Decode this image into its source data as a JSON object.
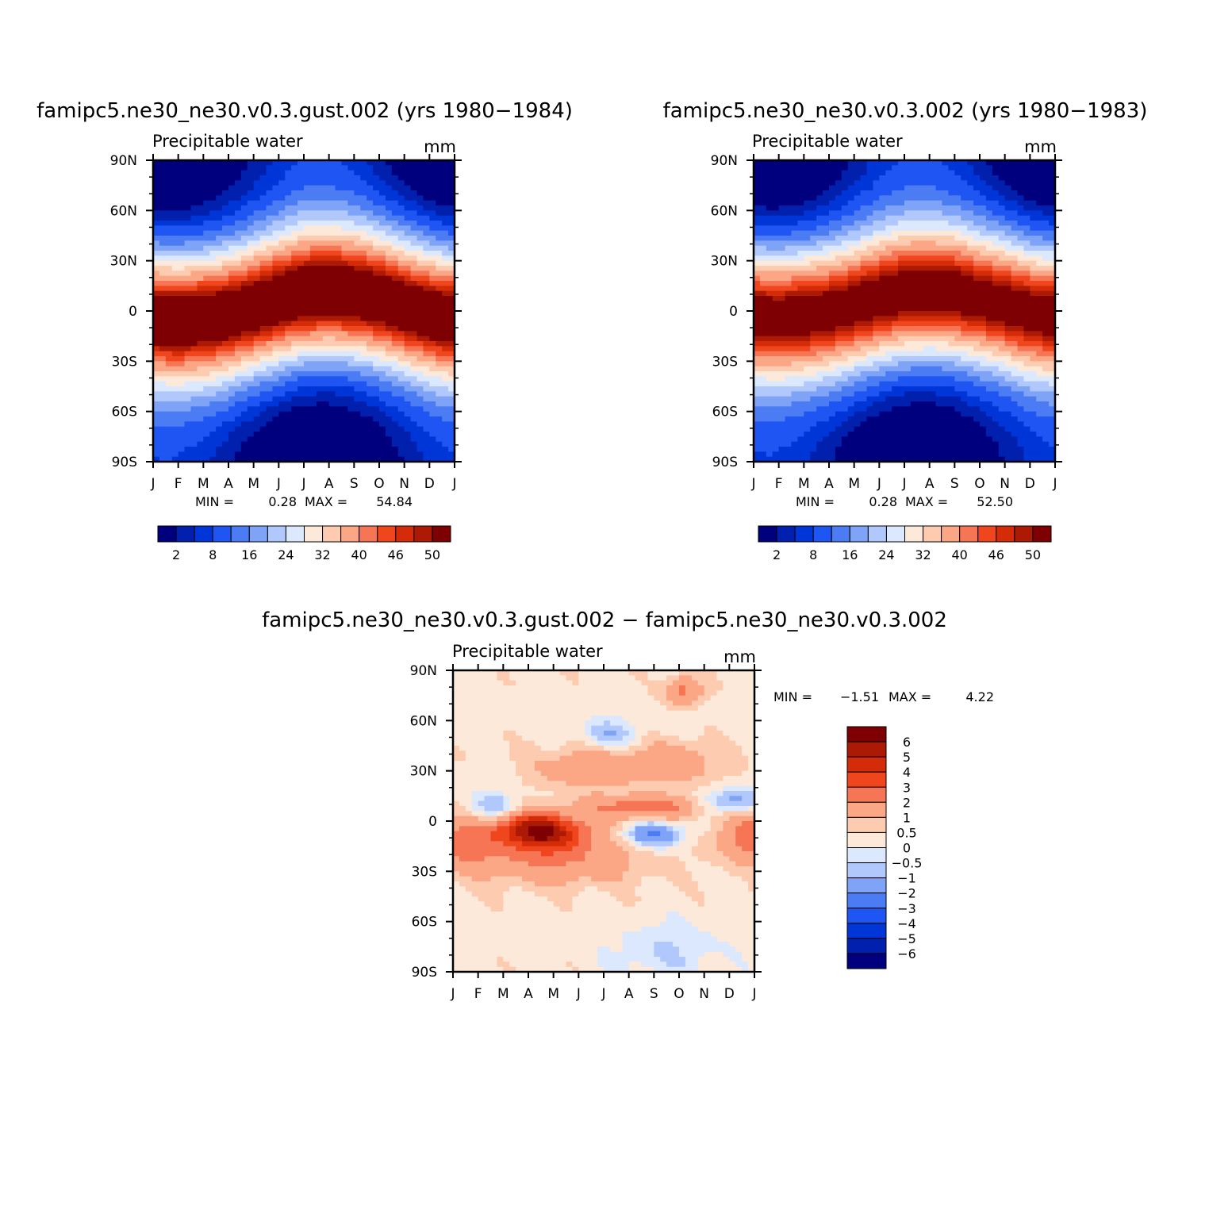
{
  "colors": {
    "abs_palette": [
      "#00007f",
      "#0020ad",
      "#0035d8",
      "#1f55f2",
      "#4c7cf3",
      "#7fa3f7",
      "#b0c8fb",
      "#dbe8fd",
      "#fde9d9",
      "#fdcbb0",
      "#fba685",
      "#f67554",
      "#f0461e",
      "#d42c08",
      "#ac1a05",
      "#7f0003"
    ],
    "diff_palette": [
      "#00007f",
      "#0020ad",
      "#0035d8",
      "#1f55f2",
      "#4c7cf3",
      "#7fa3f7",
      "#b0c8fb",
      "#dbe8fd",
      "#fde9d9",
      "#fdcbb0",
      "#fba685",
      "#f67554",
      "#f0461e",
      "#d42c08",
      "#ac1a05",
      "#7f0003"
    ]
  },
  "panels": {
    "top_left": {
      "title": "famipc5.ne30_ne30.v0.3.gust.002 (yrs 1980−1984)",
      "subtitle": "Precipitable water",
      "units": "mm",
      "stats": {
        "min_label": "MIN =",
        "min": "0.28",
        "max_label": "MAX =",
        "max": "54.84"
      }
    },
    "top_right": {
      "title": "famipc5.ne30_ne30.v0.3.002 (yrs 1980−1983)",
      "subtitle": "Precipitable water",
      "units": "mm",
      "stats": {
        "min_label": "MIN =",
        "min": "0.28",
        "max_label": "MAX =",
        "max": "52.50"
      }
    },
    "bottom": {
      "title": "famipc5.ne30_ne30.v0.3.gust.002 − famipc5.ne30_ne30.v0.3.002",
      "subtitle": "Precipitable water",
      "units": "mm",
      "stats": {
        "min_label": "MIN =",
        "min": "−1.51",
        "max_label": "MAX =",
        "max": "4.22"
      }
    }
  },
  "chart_data": [
    {
      "type": "heatmap",
      "title": "famipc5.ne30_ne30.v0.3.gust.002 (yrs 1980−1984)",
      "subtitle": "Precipitable water",
      "units": "mm",
      "x_ticks": [
        "J",
        "F",
        "M",
        "A",
        "M",
        "J",
        "J",
        "A",
        "S",
        "O",
        "N",
        "D",
        "J"
      ],
      "y_ticks": [
        "90N",
        "60N",
        "30N",
        "0",
        "30S",
        "60S",
        "90S"
      ],
      "y_values": [
        90,
        60,
        30,
        0,
        -30,
        -60,
        -90
      ],
      "x_range": [
        0,
        12
      ],
      "ylim": [
        -90,
        90
      ],
      "min": 0.28,
      "max": 54.84,
      "field": {
        "peak_lat_by_month": [
          -4,
          -5,
          -4,
          -2,
          2,
          6,
          10,
          11,
          10,
          7,
          3,
          -1,
          -4
        ],
        "peak_value": 54,
        "width_deg": 30
      },
      "colorbar": {
        "levels": [
          2,
          5,
          8,
          12,
          16,
          20,
          24,
          28,
          32,
          36,
          40,
          43,
          46,
          48,
          50
        ],
        "tick_labels": [
          "2",
          "8",
          "16",
          "24",
          "32",
          "40",
          "46",
          "50"
        ]
      }
    },
    {
      "type": "heatmap",
      "title": "famipc5.ne30_ne30.v0.3.002 (yrs 1980−1983)",
      "subtitle": "Precipitable water",
      "units": "mm",
      "x_ticks": [
        "J",
        "F",
        "M",
        "A",
        "M",
        "J",
        "J",
        "A",
        "S",
        "O",
        "N",
        "D",
        "J"
      ],
      "y_ticks": [
        "90N",
        "60N",
        "30N",
        "0",
        "30S",
        "60S",
        "90S"
      ],
      "y_values": [
        90,
        60,
        30,
        0,
        -30,
        -60,
        -90
      ],
      "x_range": [
        0,
        12
      ],
      "ylim": [
        -90,
        90
      ],
      "min": 0.28,
      "max": 52.5,
      "field": {
        "peak_lat_by_month": [
          -2,
          -3,
          -2,
          0,
          3,
          7,
          10,
          11,
          10,
          7,
          4,
          0,
          -2
        ],
        "peak_value": 52,
        "width_deg": 30
      },
      "colorbar": {
        "levels": [
          2,
          5,
          8,
          12,
          16,
          20,
          24,
          28,
          32,
          36,
          40,
          43,
          46,
          48,
          50
        ],
        "tick_labels": [
          "2",
          "8",
          "16",
          "24",
          "32",
          "40",
          "46",
          "50"
        ]
      }
    },
    {
      "type": "heatmap",
      "title": "famipc5.ne30_ne30.v0.3.gust.002 − famipc5.ne30_ne30.v0.3.002",
      "subtitle": "Precipitable water",
      "units": "mm",
      "x_ticks": [
        "J",
        "F",
        "M",
        "A",
        "M",
        "J",
        "J",
        "A",
        "S",
        "O",
        "N",
        "D",
        "J"
      ],
      "y_ticks": [
        "90N",
        "60N",
        "30N",
        "0",
        "30S",
        "60S",
        "90S"
      ],
      "y_values": [
        90,
        60,
        30,
        0,
        -30,
        -60,
        -90
      ],
      "x_range": [
        0,
        12
      ],
      "ylim": [
        -90,
        90
      ],
      "min": -1.51,
      "max": 4.22,
      "field": {
        "features": [
          {
            "month": 3.0,
            "lat": -5,
            "amp": 3.6,
            "sx": 1.0,
            "sy": 7
          },
          {
            "month": 4.0,
            "lat": -8,
            "amp": 3.2,
            "sx": 1.2,
            "sy": 8
          },
          {
            "month": 0.3,
            "lat": -12,
            "amp": 2.2,
            "sx": 1.0,
            "sy": 10
          },
          {
            "month": 11.8,
            "lat": -10,
            "amp": 2.4,
            "sx": 0.9,
            "sy": 10
          },
          {
            "month": 7.5,
            "lat": 8,
            "amp": 2.3,
            "sx": 1.6,
            "sy": 5
          },
          {
            "month": 5.5,
            "lat": 32,
            "amp": 1.5,
            "sx": 1.6,
            "sy": 9
          },
          {
            "month": 9.0,
            "lat": 35,
            "amp": 1.3,
            "sx": 1.2,
            "sy": 9
          },
          {
            "month": 9.2,
            "lat": 78,
            "amp": 2.0,
            "sx": 0.5,
            "sy": 6
          },
          {
            "month": 4.0,
            "lat": -25,
            "amp": 1.5,
            "sx": 2.5,
            "sy": 10
          },
          {
            "month": 8.0,
            "lat": -8,
            "amp": -2.4,
            "sx": 0.8,
            "sy": 5
          },
          {
            "month": 1.6,
            "lat": 8,
            "amp": -1.4,
            "sx": 0.7,
            "sy": 6
          },
          {
            "month": 11.2,
            "lat": 12,
            "amp": -1.8,
            "sx": 0.8,
            "sy": 5
          },
          {
            "month": 6.2,
            "lat": 52,
            "amp": -1.3,
            "sx": 0.8,
            "sy": 6
          },
          {
            "month": 8.5,
            "lat": -78,
            "amp": -0.8,
            "sx": 1.5,
            "sy": 12
          }
        ],
        "background": 0.3
      },
      "colorbar": {
        "levels": [
          -6,
          -5,
          -4,
          -3,
          -2,
          -1,
          -0.5,
          0,
          0.5,
          1,
          2,
          3,
          4,
          5,
          6
        ],
        "tick_labels": [
          "−6",
          "−5",
          "−4",
          "−3",
          "−2",
          "−1",
          "−0.5",
          "0",
          "0.5",
          "1",
          "2",
          "3",
          "4",
          "5",
          "6"
        ]
      }
    }
  ]
}
